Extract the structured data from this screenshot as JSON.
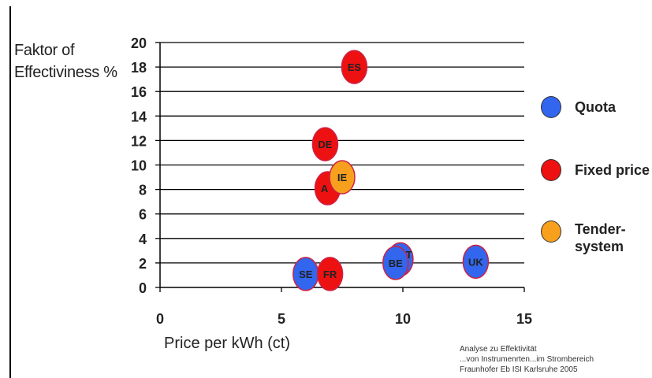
{
  "chart_data": {
    "type": "scatter",
    "title": "",
    "xlabel": "Price per kWh (ct)",
    "ylabel": "Faktor of\nEffectiviness %",
    "xlim": [
      0,
      15
    ],
    "ylim": [
      0,
      20
    ],
    "x_ticks": [
      0,
      5,
      10,
      15
    ],
    "y_ticks": [
      0,
      2,
      4,
      6,
      8,
      10,
      12,
      14,
      16,
      18,
      20
    ],
    "grid": "horizontal",
    "legend_position": "right",
    "series": [
      {
        "name": "Quota",
        "color": "#3366ee",
        "points": [
          {
            "label": "SE",
            "x": 6.0,
            "y": 1.1
          },
          {
            "label": "IT",
            "x": 9.9,
            "y": 2.3
          },
          {
            "label": "BE",
            "x": 9.7,
            "y": 2.0
          },
          {
            "label": "UK",
            "x": 13.0,
            "y": 2.1
          }
        ]
      },
      {
        "name": "Fixed price",
        "color": "#ee1111",
        "points": [
          {
            "label": "ES",
            "x": 8.0,
            "y": 18.0
          },
          {
            "label": "DE",
            "x": 6.8,
            "y": 11.7
          },
          {
            "label": "A",
            "x": 6.9,
            "y": 8.1
          },
          {
            "label": "FR",
            "x": 7.0,
            "y": 1.1
          }
        ]
      },
      {
        "name": "Tender-\nsystem",
        "color": "#f7a01e",
        "points": [
          {
            "label": "IE",
            "x": 7.5,
            "y": 9.0
          }
        ]
      }
    ]
  },
  "source_note": [
    "Analyse zu Effektivität",
    "...von  Instrumenrten...im Strombereich",
    "Fraunhofer Eb ISI Karlsruhe 2005"
  ]
}
